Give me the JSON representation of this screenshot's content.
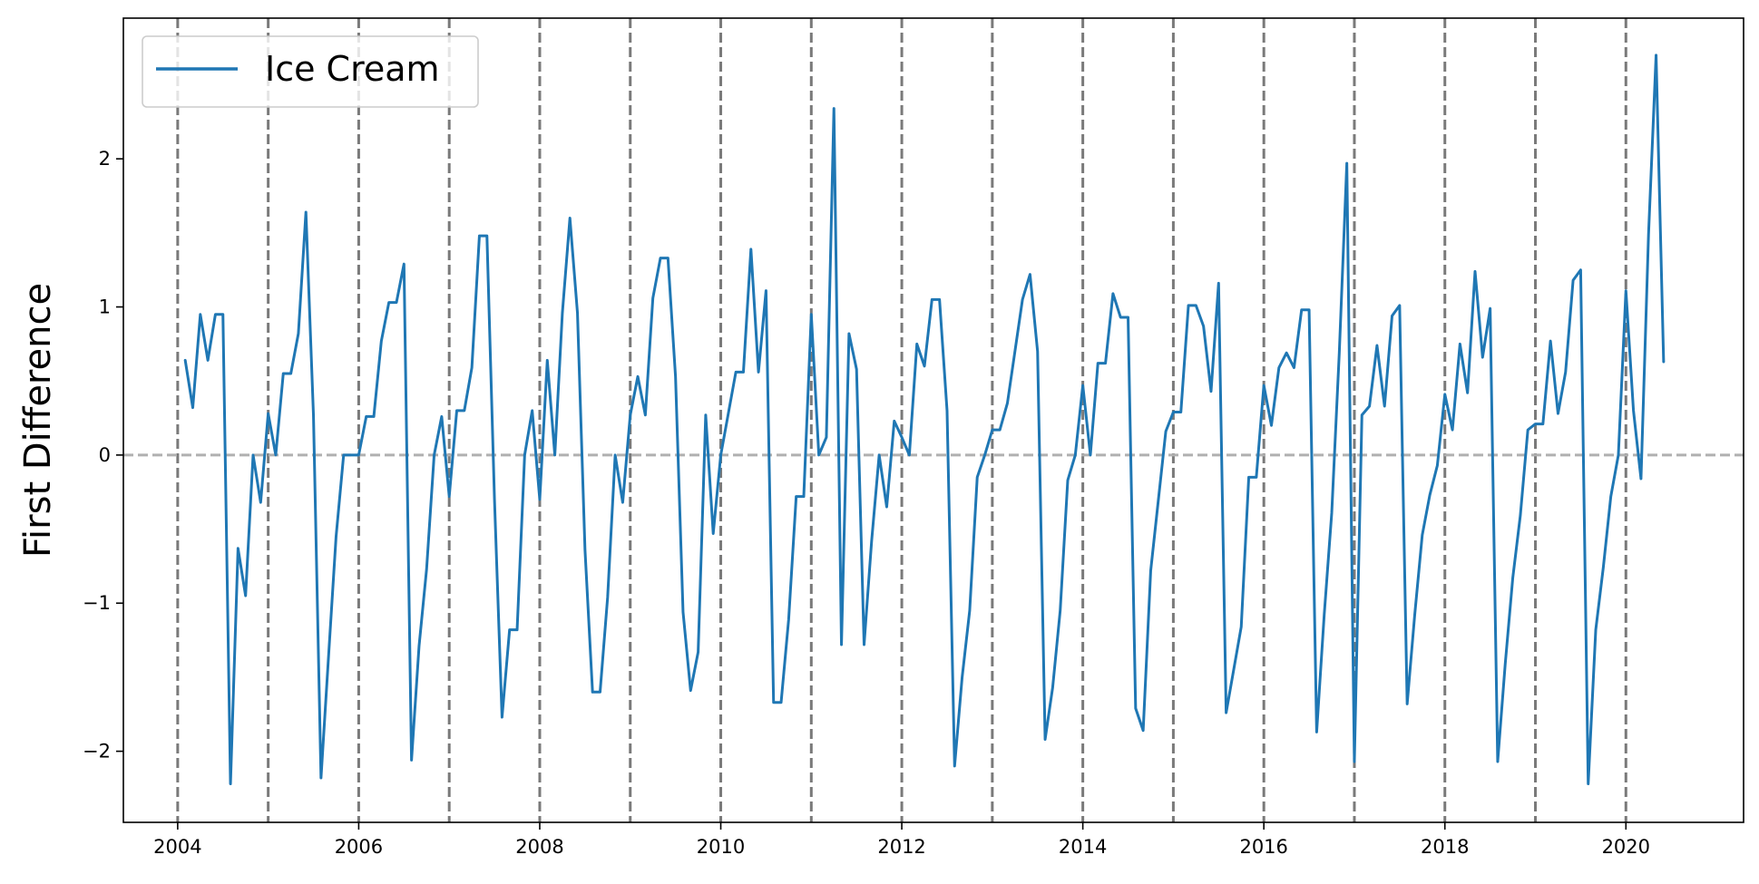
{
  "chart_data": {
    "type": "line",
    "title": "",
    "xlabel": "",
    "ylabel": "First Difference",
    "x_range": [
      2003.4,
      2021.3
    ],
    "ylim": [
      -2.48,
      2.95
    ],
    "x_ticks": [
      2004,
      2006,
      2008,
      2010,
      2012,
      2014,
      2016,
      2018,
      2020
    ],
    "x_tick_labels": [
      "2004",
      "2006",
      "2008",
      "2010",
      "2012",
      "2014",
      "2016",
      "2018",
      "2020"
    ],
    "y_ticks": [
      -2,
      -1,
      0,
      1,
      2
    ],
    "y_tick_labels": [
      "−2",
      "−1",
      "0",
      "1",
      "2"
    ],
    "legend": {
      "placement": "upper-left",
      "entries": [
        "Ice Cream"
      ]
    },
    "grid": false,
    "reference_lines": {
      "horizontal_zero": true,
      "vertical_years": [
        2004,
        2005,
        2006,
        2007,
        2008,
        2009,
        2010,
        2011,
        2012,
        2013,
        2014,
        2015,
        2016,
        2017,
        2018,
        2019,
        2020
      ]
    },
    "series": [
      {
        "name": "Ice Cream",
        "color": "#1f77b4",
        "x": [
          "2004-02",
          "2004-03",
          "2004-04",
          "2004-05",
          "2004-06",
          "2004-07",
          "2004-08",
          "2004-09",
          "2004-10",
          "2004-11",
          "2004-12",
          "2005-01",
          "2005-02",
          "2005-03",
          "2005-04",
          "2005-05",
          "2005-06",
          "2005-07",
          "2005-08",
          "2005-09",
          "2005-10",
          "2005-11",
          "2005-12",
          "2006-01",
          "2006-02",
          "2006-03",
          "2006-04",
          "2006-05",
          "2006-06",
          "2006-07",
          "2006-08",
          "2006-09",
          "2006-10",
          "2006-11",
          "2006-12",
          "2007-01",
          "2007-02",
          "2007-03",
          "2007-04",
          "2007-05",
          "2007-06",
          "2007-07",
          "2007-08",
          "2007-09",
          "2007-10",
          "2007-11",
          "2007-12",
          "2008-01",
          "2008-02",
          "2008-03",
          "2008-04",
          "2008-05",
          "2008-06",
          "2008-07",
          "2008-08",
          "2008-09",
          "2008-10",
          "2008-11",
          "2008-12",
          "2009-01",
          "2009-02",
          "2009-03",
          "2009-04",
          "2009-05",
          "2009-06",
          "2009-07",
          "2009-08",
          "2009-09",
          "2009-10",
          "2009-11",
          "2009-12",
          "2010-01",
          "2010-02",
          "2010-03",
          "2010-04",
          "2010-05",
          "2010-06",
          "2010-07",
          "2010-08",
          "2010-09",
          "2010-10",
          "2010-11",
          "2010-12",
          "2011-01",
          "2011-02",
          "2011-03",
          "2011-04",
          "2011-05",
          "2011-06",
          "2011-07",
          "2011-08",
          "2011-09",
          "2011-10",
          "2011-11",
          "2011-12",
          "2012-01",
          "2012-02",
          "2012-03",
          "2012-04",
          "2012-05",
          "2012-06",
          "2012-07",
          "2012-08",
          "2012-09",
          "2012-10",
          "2012-11",
          "2012-12",
          "2013-01",
          "2013-02",
          "2013-03",
          "2013-04",
          "2013-05",
          "2013-06",
          "2013-07",
          "2013-08",
          "2013-09",
          "2013-10",
          "2013-11",
          "2013-12",
          "2014-01",
          "2014-02",
          "2014-03",
          "2014-04",
          "2014-05",
          "2014-06",
          "2014-07",
          "2014-08",
          "2014-09",
          "2014-10",
          "2014-11",
          "2014-12",
          "2015-01",
          "2015-02",
          "2015-03",
          "2015-04",
          "2015-05",
          "2015-06",
          "2015-07",
          "2015-08",
          "2015-09",
          "2015-10",
          "2015-11",
          "2015-12",
          "2016-01",
          "2016-02",
          "2016-03",
          "2016-04",
          "2016-05",
          "2016-06",
          "2016-07",
          "2016-08",
          "2016-09",
          "2016-10",
          "2016-11",
          "2016-12",
          "2017-01",
          "2017-02",
          "2017-03",
          "2017-04",
          "2017-05",
          "2017-06",
          "2017-07",
          "2017-08",
          "2017-09",
          "2017-10",
          "2017-11",
          "2017-12",
          "2018-01",
          "2018-02",
          "2018-03",
          "2018-04",
          "2018-05",
          "2018-06",
          "2018-07",
          "2018-08",
          "2018-09",
          "2018-10",
          "2018-11",
          "2018-12",
          "2019-01",
          "2019-02",
          "2019-03",
          "2019-04",
          "2019-05",
          "2019-06",
          "2019-07",
          "2019-08",
          "2019-09",
          "2019-10",
          "2019-11",
          "2019-12",
          "2020-01",
          "2020-02",
          "2020-03",
          "2020-04",
          "2020-05",
          "2020-06"
        ],
        "values": [
          0.64,
          0.32,
          0.95,
          0.64,
          0.95,
          0.95,
          -2.22,
          -0.63,
          -0.95,
          0.0,
          -0.32,
          0.28,
          0.0,
          0.55,
          0.55,
          0.82,
          1.64,
          0.27,
          -2.18,
          -1.36,
          -0.55,
          0.0,
          0.0,
          0.0,
          0.26,
          0.26,
          0.77,
          1.03,
          1.03,
          1.29,
          -2.06,
          -1.29,
          -0.77,
          0.0,
          0.26,
          -0.28,
          0.3,
          0.3,
          0.59,
          1.48,
          1.48,
          -0.3,
          -1.77,
          -1.18,
          -1.18,
          0.0,
          0.3,
          -0.3,
          0.64,
          0.0,
          0.96,
          1.6,
          0.96,
          -0.64,
          -1.6,
          -1.6,
          -0.96,
          0.0,
          -0.32,
          0.27,
          0.53,
          0.27,
          1.06,
          1.33,
          1.33,
          0.53,
          -1.06,
          -1.59,
          -1.33,
          0.27,
          -0.53,
          0.0,
          0.28,
          0.56,
          0.56,
          1.39,
          0.56,
          1.11,
          -1.67,
          -1.67,
          -1.11,
          -0.28,
          -0.28,
          0.95,
          0.0,
          0.12,
          2.34,
          -1.28,
          0.82,
          0.58,
          -1.28,
          -0.58,
          0.0,
          -0.35,
          0.23,
          0.12,
          0.0,
          0.75,
          0.6,
          1.05,
          1.05,
          0.3,
          -2.1,
          -1.5,
          -1.05,
          -0.15,
          0.0,
          0.17,
          0.17,
          0.35,
          0.7,
          1.05,
          1.22,
          0.7,
          -1.92,
          -1.57,
          -1.05,
          -0.17,
          0.0,
          0.47,
          0.0,
          0.62,
          0.62,
          1.09,
          0.93,
          0.93,
          -1.71,
          -1.86,
          -0.78,
          -0.31,
          0.16,
          0.29,
          0.29,
          1.01,
          1.01,
          0.87,
          0.43,
          1.16,
          -1.74,
          -1.45,
          -1.16,
          -0.15,
          -0.15,
          0.47,
          0.2,
          0.59,
          0.69,
          0.59,
          0.98,
          0.98,
          -1.87,
          -1.08,
          -0.39,
          0.69,
          1.97,
          -2.07,
          0.27,
          0.33,
          0.74,
          0.33,
          0.94,
          1.01,
          -1.68,
          -1.08,
          -0.54,
          -0.27,
          -0.07,
          0.41,
          0.17,
          0.75,
          0.42,
          1.24,
          0.66,
          0.99,
          -2.07,
          -1.41,
          -0.83,
          -0.41,
          0.17,
          0.21,
          0.21,
          0.77,
          0.28,
          0.56,
          1.18,
          1.25,
          -2.22,
          -1.18,
          -0.76,
          -0.28,
          0.0,
          1.11,
          0.3,
          -0.16,
          1.49,
          2.7,
          0.63
        ]
      }
    ]
  }
}
